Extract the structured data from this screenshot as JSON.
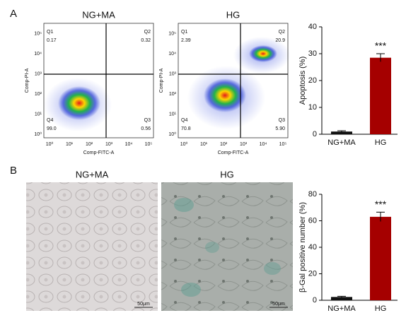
{
  "panels": {
    "a": "A",
    "b": "B"
  },
  "flow": [
    {
      "title": "NG+MA",
      "x_label": "Comp-FITC-A",
      "y_label": "Comp-PI-A",
      "quadrants": [
        {
          "name": "Q1",
          "value": "0.17"
        },
        {
          "name": "Q2",
          "value": "0.32"
        },
        {
          "name": "Q3",
          "value": "0.56"
        },
        {
          "name": "Q4",
          "value": "99.0"
        }
      ]
    },
    {
      "title": "HG",
      "x_label": "Comp-FITC-A",
      "y_label": "Comp-PI-A",
      "quadrants": [
        {
          "name": "Q1",
          "value": "2.39"
        },
        {
          "name": "Q2",
          "value": "20.9"
        },
        {
          "name": "Q3",
          "value": "5.90"
        },
        {
          "name": "Q4",
          "value": "70.8"
        }
      ]
    }
  ],
  "flow_ticks": [
    "10⁰",
    "10¹",
    "10²",
    "10³",
    "10⁴",
    "10⁵"
  ],
  "micrographs": [
    {
      "title": "NG+MA",
      "scale_bar": "50μm"
    },
    {
      "title": "HG",
      "scale_bar": "50μm"
    }
  ],
  "chart_data": [
    {
      "type": "bar",
      "ylabel": "Apoptosis (%)",
      "categories": [
        "NG+MA",
        "HG"
      ],
      "values": [
        1,
        28.5
      ],
      "errors": [
        0.3,
        1.5
      ],
      "colors": [
        "#111111",
        "#a50000"
      ],
      "ylim": [
        0,
        40
      ],
      "yticks": [
        0,
        10,
        20,
        30,
        40
      ],
      "annotation": "***"
    },
    {
      "type": "bar",
      "ylabel": "β-Gal positive number (%)",
      "categories": [
        "NG+MA",
        "HG"
      ],
      "values": [
        2.5,
        63
      ],
      "errors": [
        0.5,
        3.5
      ],
      "colors": [
        "#111111",
        "#a50000"
      ],
      "ylim": [
        0,
        80
      ],
      "yticks": [
        0,
        20,
        40,
        60,
        80
      ],
      "annotation": "***"
    }
  ]
}
